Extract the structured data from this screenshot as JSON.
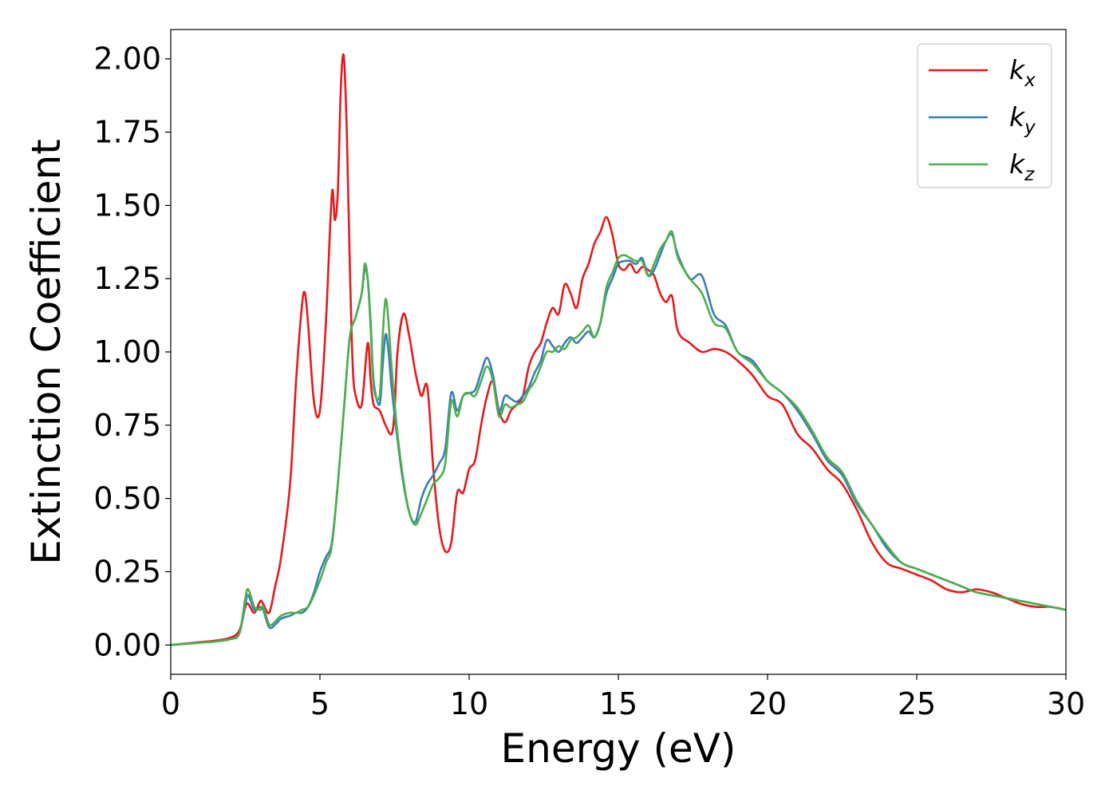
{
  "chart_data": {
    "type": "line",
    "title": "",
    "xlabel": "Energy (eV)",
    "ylabel": "Extinction Coefficient",
    "xlim": [
      0,
      30
    ],
    "ylim": [
      -0.1,
      2.1
    ],
    "xticks": [
      0,
      5,
      10,
      15,
      20,
      25,
      30
    ],
    "xtick_labels": [
      "0",
      "5",
      "10",
      "15",
      "20",
      "25",
      "30"
    ],
    "yticks": [
      0.0,
      0.25,
      0.5,
      0.75,
      1.0,
      1.25,
      1.5,
      1.75,
      2.0
    ],
    "ytick_labels": [
      "0.00",
      "0.25",
      "0.50",
      "0.75",
      "1.00",
      "1.25",
      "1.50",
      "1.75",
      "2.00"
    ],
    "grid": false,
    "legend_position": "top-right",
    "series": [
      {
        "name": "k_x",
        "legend_base": "k",
        "legend_sub": "x",
        "color": "#e41a1c",
        "x": [
          0,
          1,
          1.5,
          2.0,
          2.3,
          2.5,
          2.6,
          2.8,
          3.0,
          3.1,
          3.3,
          3.5,
          3.7,
          4.0,
          4.2,
          4.4,
          4.5,
          4.6,
          4.8,
          5.0,
          5.2,
          5.4,
          5.5,
          5.6,
          5.7,
          5.8,
          5.9,
          6.0,
          6.1,
          6.2,
          6.4,
          6.6,
          6.7,
          6.8,
          7.0,
          7.2,
          7.4,
          7.5,
          7.6,
          7.8,
          8.0,
          8.2,
          8.4,
          8.6,
          8.8,
          9.0,
          9.2,
          9.4,
          9.6,
          9.8,
          10.0,
          10.2,
          10.4,
          10.6,
          10.8,
          11.0,
          11.2,
          11.4,
          11.6,
          11.8,
          12.0,
          12.2,
          12.4,
          12.6,
          12.8,
          13.0,
          13.2,
          13.4,
          13.6,
          13.8,
          14.0,
          14.2,
          14.4,
          14.6,
          14.8,
          15.0,
          15.2,
          15.4,
          15.6,
          15.8,
          16.0,
          16.2,
          16.4,
          16.6,
          16.8,
          17.0,
          17.4,
          17.8,
          18.2,
          18.6,
          19.0,
          19.5,
          20.0,
          20.5,
          21.0,
          21.5,
          22.0,
          22.5,
          23.0,
          23.5,
          24.0,
          24.5,
          25.0,
          25.5,
          26.0,
          26.5,
          27.0,
          27.5,
          28.0,
          28.5,
          29.0,
          29.5,
          30.0
        ],
        "y": [
          0.0,
          0.01,
          0.015,
          0.025,
          0.05,
          0.13,
          0.14,
          0.11,
          0.15,
          0.14,
          0.11,
          0.2,
          0.3,
          0.55,
          0.9,
          1.16,
          1.2,
          1.1,
          0.83,
          0.8,
          1.1,
          1.54,
          1.45,
          1.55,
          1.9,
          2.01,
          1.75,
          1.3,
          0.95,
          0.85,
          0.82,
          1.03,
          0.9,
          0.82,
          0.8,
          0.75,
          0.72,
          0.8,
          1.0,
          1.13,
          1.05,
          0.93,
          0.85,
          0.88,
          0.6,
          0.4,
          0.32,
          0.35,
          0.52,
          0.52,
          0.6,
          0.63,
          0.75,
          0.85,
          0.9,
          0.8,
          0.76,
          0.8,
          0.82,
          0.85,
          0.95,
          1.0,
          1.03,
          1.1,
          1.15,
          1.13,
          1.23,
          1.2,
          1.15,
          1.25,
          1.3,
          1.37,
          1.41,
          1.46,
          1.4,
          1.3,
          1.28,
          1.3,
          1.27,
          1.29,
          1.28,
          1.26,
          1.2,
          1.17,
          1.19,
          1.07,
          1.03,
          1.0,
          1.01,
          1.0,
          0.97,
          0.92,
          0.85,
          0.82,
          0.72,
          0.67,
          0.6,
          0.55,
          0.46,
          0.35,
          0.28,
          0.26,
          0.24,
          0.22,
          0.19,
          0.18,
          0.19,
          0.18,
          0.16,
          0.14,
          0.13,
          0.13,
          0.12
        ]
      },
      {
        "name": "k_y",
        "legend_base": "k",
        "legend_sub": "y",
        "color": "#377eb8",
        "x": [
          0,
          1,
          1.5,
          2.0,
          2.3,
          2.5,
          2.6,
          2.8,
          3.0,
          3.1,
          3.3,
          3.5,
          3.7,
          4.0,
          4.2,
          4.4,
          4.6,
          4.8,
          5.0,
          5.2,
          5.4,
          5.6,
          5.8,
          6.0,
          6.2,
          6.4,
          6.5,
          6.6,
          6.7,
          6.8,
          7.0,
          7.1,
          7.2,
          7.3,
          7.4,
          7.6,
          7.8,
          8.0,
          8.2,
          8.4,
          8.6,
          8.8,
          9.0,
          9.2,
          9.4,
          9.6,
          9.8,
          10.0,
          10.2,
          10.4,
          10.6,
          10.8,
          11.0,
          11.2,
          11.4,
          11.6,
          11.8,
          12.0,
          12.2,
          12.4,
          12.6,
          12.8,
          13.0,
          13.2,
          13.4,
          13.6,
          13.8,
          14.0,
          14.2,
          14.4,
          14.6,
          14.8,
          15.0,
          15.2,
          15.4,
          15.6,
          15.8,
          16.0,
          16.2,
          16.4,
          16.6,
          16.8,
          17.0,
          17.4,
          17.8,
          18.2,
          18.6,
          19.0,
          19.5,
          20.0,
          20.5,
          21.0,
          21.5,
          22.0,
          22.5,
          23.0,
          23.5,
          24.0,
          24.5,
          25.0,
          25.5,
          26.0,
          26.5,
          27.0,
          27.5,
          28.0,
          28.5,
          29.0,
          29.5,
          30.0
        ],
        "y": [
          0.0,
          0.008,
          0.012,
          0.02,
          0.04,
          0.14,
          0.17,
          0.12,
          0.13,
          0.12,
          0.06,
          0.07,
          0.09,
          0.1,
          0.11,
          0.11,
          0.13,
          0.18,
          0.25,
          0.3,
          0.35,
          0.55,
          0.8,
          1.05,
          1.12,
          1.2,
          1.28,
          1.25,
          1.1,
          0.9,
          0.82,
          0.95,
          1.06,
          1.0,
          0.88,
          0.7,
          0.55,
          0.45,
          0.42,
          0.5,
          0.55,
          0.58,
          0.62,
          0.67,
          0.86,
          0.8,
          0.85,
          0.86,
          0.87,
          0.93,
          0.98,
          0.92,
          0.8,
          0.85,
          0.84,
          0.83,
          0.85,
          0.88,
          0.93,
          0.97,
          1.04,
          1.02,
          1.0,
          1.03,
          1.05,
          1.03,
          1.05,
          1.07,
          1.05,
          1.1,
          1.2,
          1.25,
          1.3,
          1.31,
          1.31,
          1.3,
          1.32,
          1.26,
          1.28,
          1.33,
          1.38,
          1.4,
          1.33,
          1.25,
          1.26,
          1.13,
          1.09,
          1.0,
          0.97,
          0.9,
          0.86,
          0.8,
          0.72,
          0.63,
          0.58,
          0.48,
          0.41,
          0.33,
          0.28,
          0.26,
          0.24,
          0.22,
          0.2,
          0.18,
          0.17,
          0.16,
          0.15,
          0.14,
          0.13,
          0.12
        ]
      },
      {
        "name": "k_z",
        "legend_base": "k",
        "legend_sub": "z",
        "color": "#4daf4a",
        "x": [
          0,
          1,
          1.5,
          2.0,
          2.3,
          2.5,
          2.6,
          2.8,
          3.0,
          3.1,
          3.3,
          3.5,
          3.7,
          4.0,
          4.2,
          4.4,
          4.6,
          4.8,
          5.0,
          5.2,
          5.4,
          5.6,
          5.8,
          6.0,
          6.2,
          6.4,
          6.5,
          6.6,
          6.7,
          6.8,
          7.0,
          7.1,
          7.2,
          7.3,
          7.4,
          7.6,
          7.8,
          8.0,
          8.2,
          8.4,
          8.6,
          8.8,
          9.0,
          9.2,
          9.4,
          9.6,
          9.8,
          10.0,
          10.2,
          10.4,
          10.6,
          10.8,
          11.0,
          11.2,
          11.4,
          11.6,
          11.8,
          12.0,
          12.2,
          12.4,
          12.6,
          12.8,
          13.0,
          13.2,
          13.4,
          13.6,
          13.8,
          14.0,
          14.2,
          14.4,
          14.6,
          14.8,
          15.0,
          15.2,
          15.4,
          15.6,
          15.8,
          16.0,
          16.2,
          16.4,
          16.6,
          16.8,
          17.0,
          17.4,
          17.8,
          18.2,
          18.6,
          19.0,
          19.5,
          20.0,
          20.5,
          21.0,
          21.5,
          22.0,
          22.5,
          23.0,
          23.5,
          24.0,
          24.5,
          25.0,
          25.5,
          26.0,
          26.5,
          27.0,
          27.5,
          28.0,
          28.5,
          29.0,
          29.5,
          30.0
        ],
        "y": [
          0.0,
          0.008,
          0.012,
          0.02,
          0.04,
          0.16,
          0.19,
          0.13,
          0.12,
          0.13,
          0.07,
          0.08,
          0.1,
          0.11,
          0.11,
          0.12,
          0.13,
          0.17,
          0.22,
          0.28,
          0.34,
          0.55,
          0.8,
          1.05,
          1.12,
          1.2,
          1.3,
          1.25,
          1.08,
          0.88,
          0.85,
          1.05,
          1.18,
          1.1,
          0.95,
          0.72,
          0.56,
          0.45,
          0.41,
          0.45,
          0.5,
          0.55,
          0.57,
          0.62,
          0.83,
          0.78,
          0.85,
          0.86,
          0.85,
          0.9,
          0.95,
          0.9,
          0.78,
          0.82,
          0.81,
          0.82,
          0.83,
          0.87,
          0.9,
          0.95,
          1.0,
          1.0,
          1.02,
          1.01,
          1.04,
          1.05,
          1.07,
          1.09,
          1.05,
          1.1,
          1.22,
          1.27,
          1.32,
          1.33,
          1.32,
          1.31,
          1.31,
          1.26,
          1.3,
          1.35,
          1.38,
          1.41,
          1.32,
          1.25,
          1.2,
          1.1,
          1.08,
          1.0,
          0.96,
          0.9,
          0.86,
          0.81,
          0.73,
          0.64,
          0.59,
          0.49,
          0.41,
          0.34,
          0.28,
          0.26,
          0.24,
          0.22,
          0.2,
          0.18,
          0.17,
          0.16,
          0.15,
          0.14,
          0.13,
          0.12
        ]
      }
    ]
  }
}
